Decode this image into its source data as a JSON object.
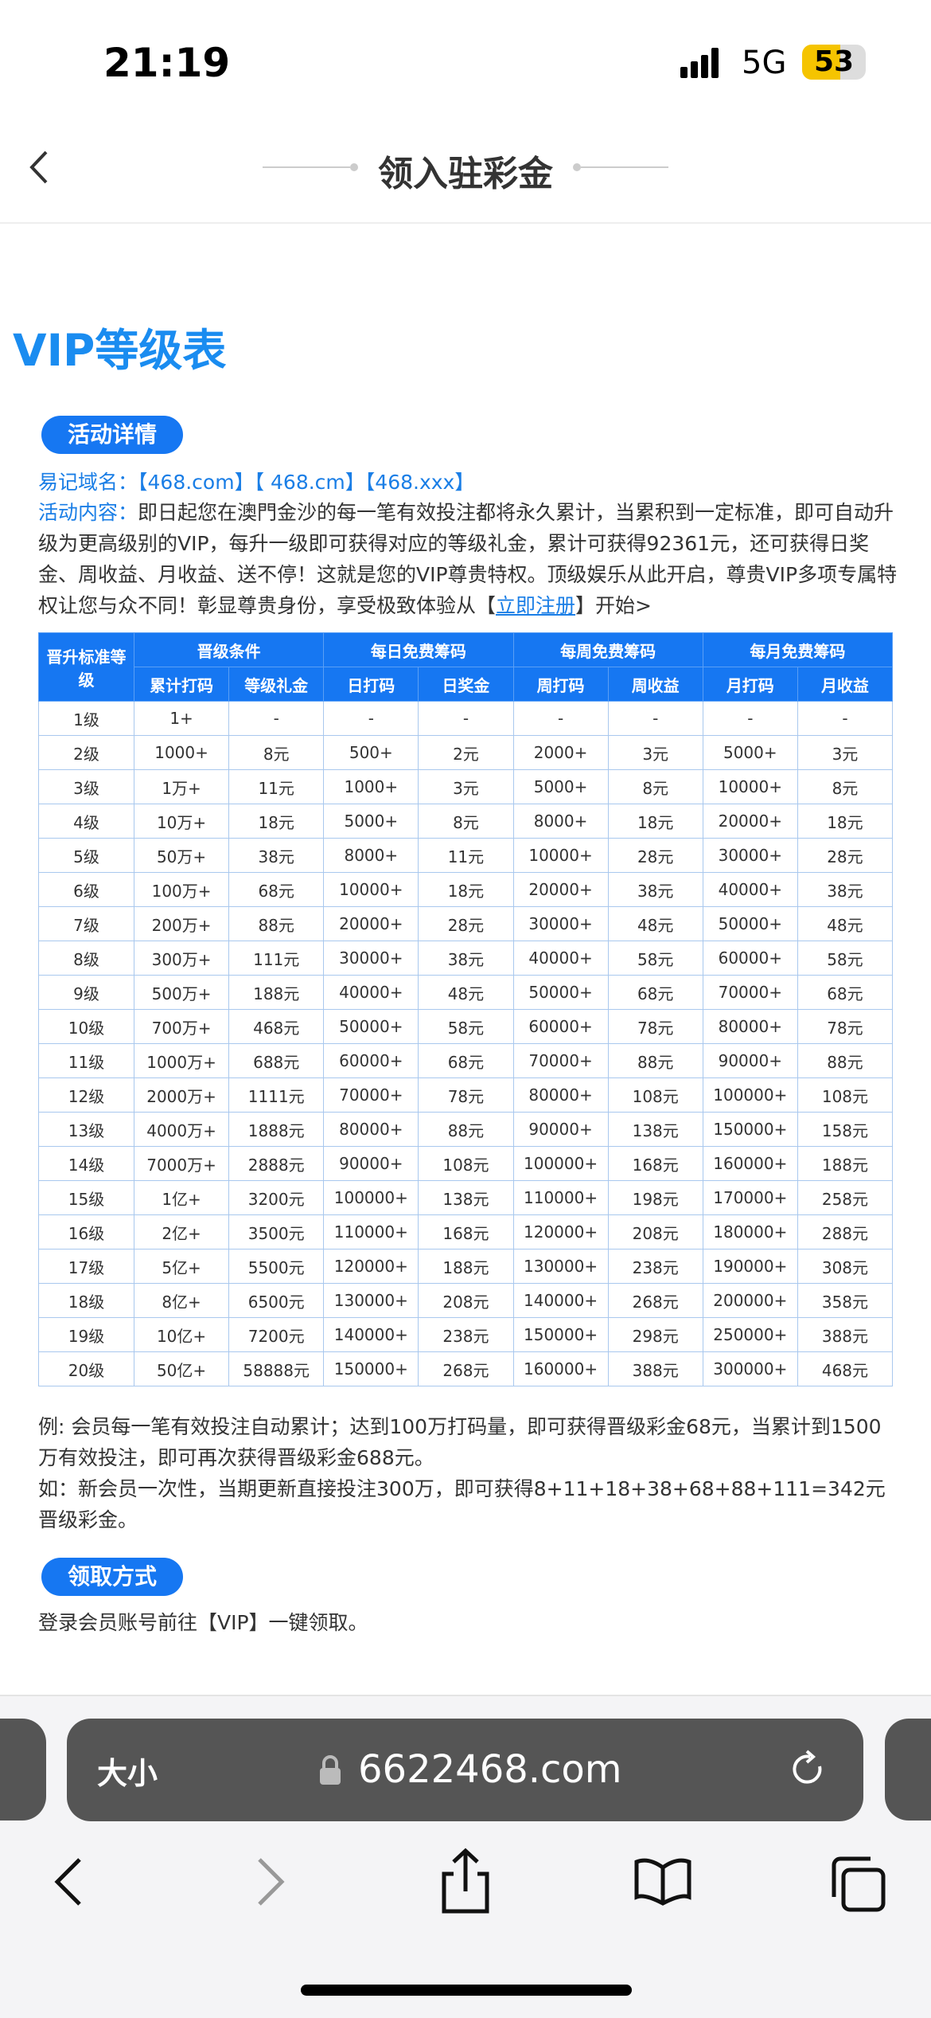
{
  "status": {
    "time": "21:19",
    "network": "5G",
    "battery": "53"
  },
  "header": {
    "title": "领入驻彩金"
  },
  "heading": "VIP等级表",
  "details": {
    "badge": "活动详情",
    "domain_label": "易记域名：",
    "domains": "【468.com】【 468.cm】【468.xxx】",
    "content_label": "活动内容：",
    "content": "即日起您在澳門金沙的每一笔有效投注都将永久累计，当累积到一定标准，即可自动升级为更高级别的VIP，每升一级即可获得对应的等级礼金，累计可获得92361元，还可获得日奖金、周收益、月收益、送不停！这就是您的VIP尊贵特权。顶级娱乐从此开启，尊贵VIP多项专属特权让您与众不同！彰显尊贵身份，享受极致体验从【",
    "register": "立即注册",
    "content_end": "】开始>"
  },
  "table": {
    "groups": [
      "晋升标准等级",
      "晋级条件",
      "每日免费筹码",
      "每周免费筹码",
      "每月免费筹码"
    ],
    "columns": [
      "累计打码",
      "等级礼金",
      "日打码",
      "日奖金",
      "周打码",
      "周收益",
      "月打码",
      "月收益"
    ],
    "rows": [
      [
        "1级",
        "1+",
        "-",
        "-",
        "-",
        "-",
        "-",
        "-",
        "-"
      ],
      [
        "2级",
        "1000+",
        "8元",
        "500+",
        "2元",
        "2000+",
        "3元",
        "5000+",
        "3元"
      ],
      [
        "3级",
        "1万+",
        "11元",
        "1000+",
        "3元",
        "5000+",
        "8元",
        "10000+",
        "8元"
      ],
      [
        "4级",
        "10万+",
        "18元",
        "5000+",
        "8元",
        "8000+",
        "18元",
        "20000+",
        "18元"
      ],
      [
        "5级",
        "50万+",
        "38元",
        "8000+",
        "11元",
        "10000+",
        "28元",
        "30000+",
        "28元"
      ],
      [
        "6级",
        "100万+",
        "68元",
        "10000+",
        "18元",
        "20000+",
        "38元",
        "40000+",
        "38元"
      ],
      [
        "7级",
        "200万+",
        "88元",
        "20000+",
        "28元",
        "30000+",
        "48元",
        "50000+",
        "48元"
      ],
      [
        "8级",
        "300万+",
        "111元",
        "30000+",
        "38元",
        "40000+",
        "58元",
        "60000+",
        "58元"
      ],
      [
        "9级",
        "500万+",
        "188元",
        "40000+",
        "48元",
        "50000+",
        "68元",
        "70000+",
        "68元"
      ],
      [
        "10级",
        "700万+",
        "468元",
        "50000+",
        "58元",
        "60000+",
        "78元",
        "80000+",
        "78元"
      ],
      [
        "11级",
        "1000万+",
        "688元",
        "60000+",
        "68元",
        "70000+",
        "88元",
        "90000+",
        "88元"
      ],
      [
        "12级",
        "2000万+",
        "1111元",
        "70000+",
        "78元",
        "80000+",
        "108元",
        "100000+",
        "108元"
      ],
      [
        "13级",
        "4000万+",
        "1888元",
        "80000+",
        "88元",
        "90000+",
        "138元",
        "150000+",
        "158元"
      ],
      [
        "14级",
        "7000万+",
        "2888元",
        "90000+",
        "108元",
        "100000+",
        "168元",
        "160000+",
        "188元"
      ],
      [
        "15级",
        "1亿+",
        "3200元",
        "100000+",
        "138元",
        "110000+",
        "198元",
        "170000+",
        "258元"
      ],
      [
        "16级",
        "2亿+",
        "3500元",
        "110000+",
        "168元",
        "120000+",
        "208元",
        "180000+",
        "288元"
      ],
      [
        "17级",
        "5亿+",
        "5500元",
        "120000+",
        "188元",
        "130000+",
        "238元",
        "190000+",
        "308元"
      ],
      [
        "18级",
        "8亿+",
        "6500元",
        "130000+",
        "208元",
        "140000+",
        "268元",
        "200000+",
        "358元"
      ],
      [
        "19级",
        "10亿+",
        "7200元",
        "140000+",
        "238元",
        "150000+",
        "298元",
        "250000+",
        "388元"
      ],
      [
        "20级",
        "50亿+",
        "58888元",
        "150000+",
        "268元",
        "160000+",
        "388元",
        "300000+",
        "468元"
      ]
    ]
  },
  "notes": [
    "例: 会员每一笔有效投注自动累计；达到100万打码量，即可获得晋级彩金68元，当累计到1500万有效投注，即可再次获得晋级彩金688元。",
    "如：新会员一次性，当期更新直接投注300万，即可获得8+11+18+38+68+88+111=342元晋级彩金。"
  ],
  "claim": {
    "badge": "领取方式",
    "text": "登录会员账号前往【VIP】一键领取。"
  },
  "browser": {
    "text_size": "大小",
    "url": "6622468.com"
  }
}
